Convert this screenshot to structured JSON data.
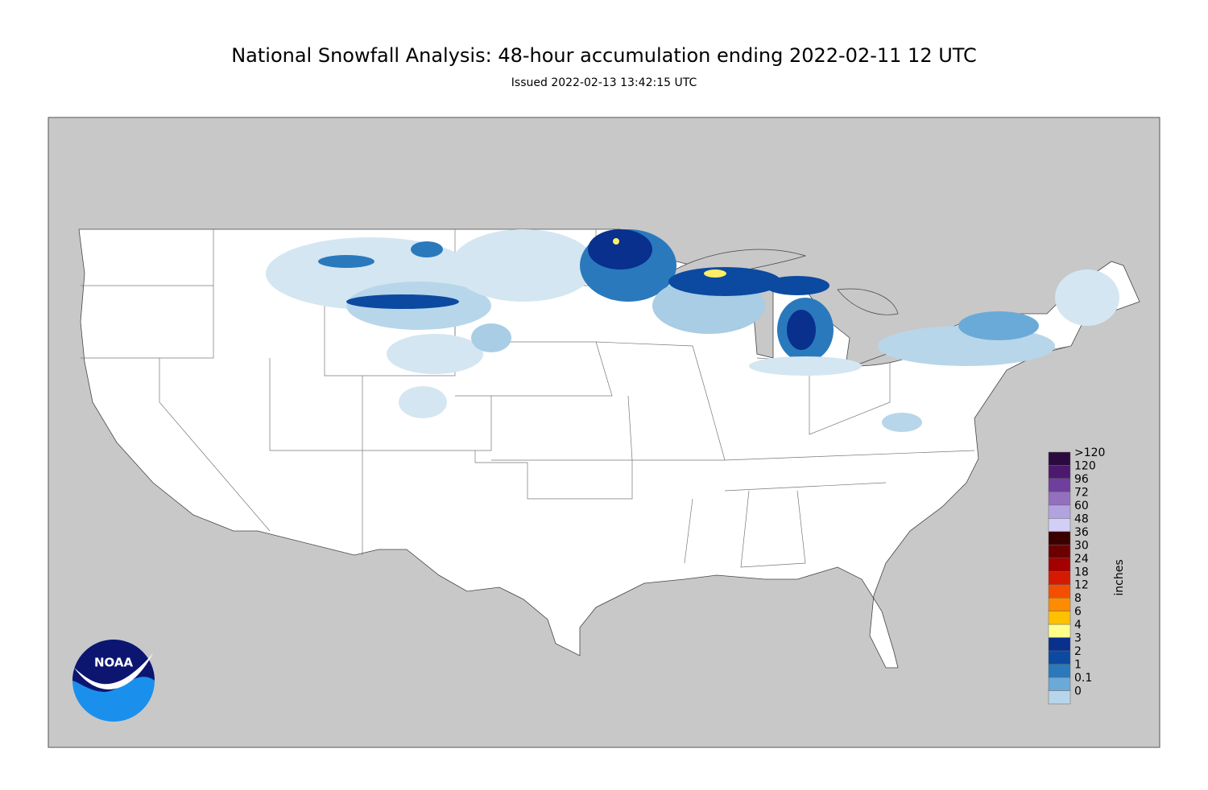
{
  "header": {
    "title": "National Snowfall Analysis: 48-hour accumulation ending 2022-02-11 12 UTC",
    "subtitle": "Issued 2022-02-13 13:42:15 UTC"
  },
  "legend": {
    "title": "inches",
    "items": [
      {
        "label": ">120",
        "color": "#2a0a3f"
      },
      {
        "label": "120",
        "color": "#4b1a6e"
      },
      {
        "label": "96",
        "color": "#6e3f9c"
      },
      {
        "label": "72",
        "color": "#9270bf"
      },
      {
        "label": "60",
        "color": "#b2a2e0"
      },
      {
        "label": "48",
        "color": "#d2cff7"
      },
      {
        "label": "36",
        "color": "#3a0000"
      },
      {
        "label": "30",
        "color": "#6c0000"
      },
      {
        "label": "24",
        "color": "#a30000"
      },
      {
        "label": "18",
        "color": "#d41a00"
      },
      {
        "label": "12",
        "color": "#f25000"
      },
      {
        "label": "8",
        "color": "#ff8c00"
      },
      {
        "label": "6",
        "color": "#ffc000"
      },
      {
        "label": "4",
        "color": "#ffff8a"
      },
      {
        "label": "3",
        "color": "#08308c"
      },
      {
        "label": "2",
        "color": "#0b4aa0"
      },
      {
        "label": "1",
        "color": "#2a79bd"
      },
      {
        "label": "0.1",
        "color": "#6aaad8"
      },
      {
        "label": "0",
        "color": "#b8d6ea"
      }
    ]
  },
  "logo": {
    "text": "NOAA"
  }
}
